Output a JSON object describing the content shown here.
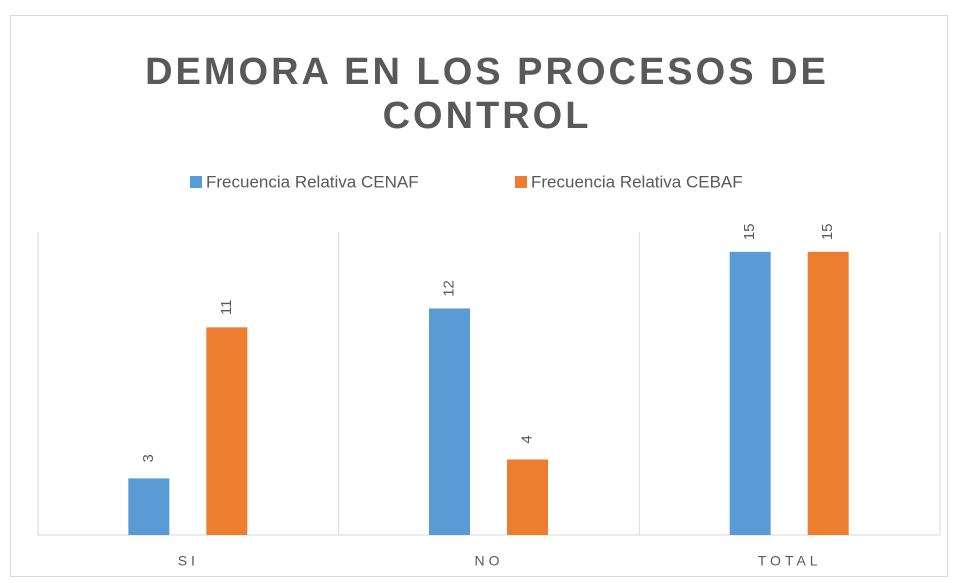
{
  "chart_data": {
    "type": "bar",
    "title": "DEMORA EN LOS PROCESOS DE CONTROL",
    "categories": [
      "SI",
      "NO",
      "TOTAL"
    ],
    "series": [
      {
        "name": "Frecuencia Relativa CENAF",
        "color": "#5b9bd5",
        "values": [
          3,
          12,
          15
        ]
      },
      {
        "name": "Frecuencia Relativa CEBAF",
        "color": "#ed7d31",
        "values": [
          11,
          4,
          15
        ]
      }
    ],
    "grid": true,
    "legend": "top"
  }
}
